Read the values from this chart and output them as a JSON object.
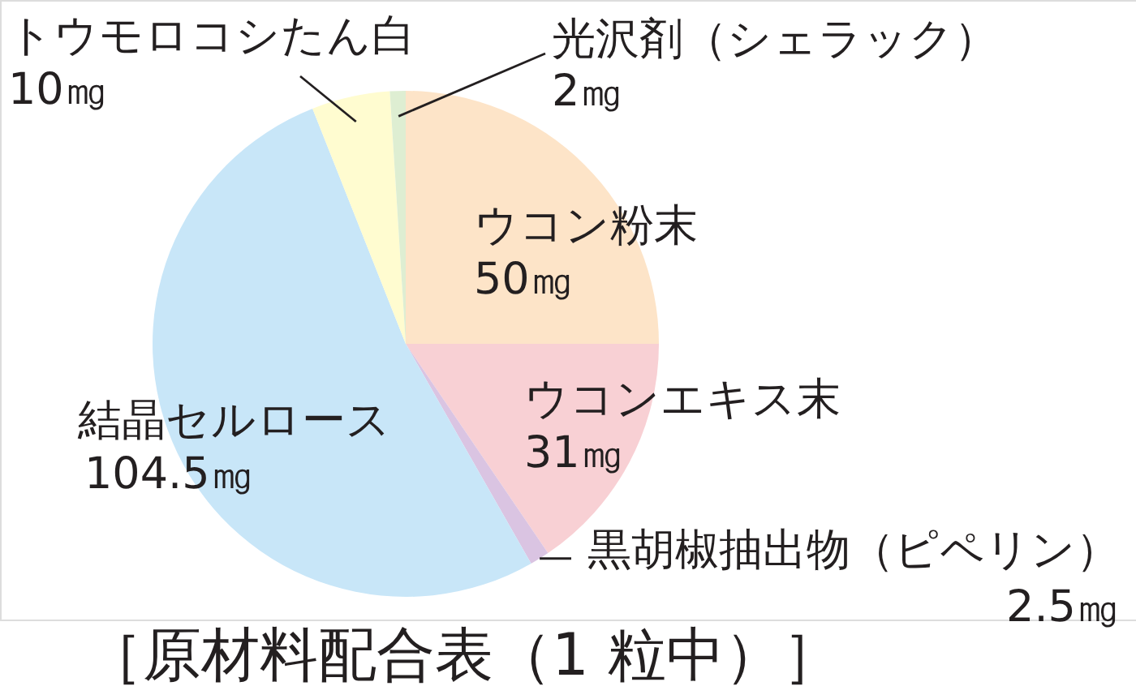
{
  "chart_data": {
    "type": "pie",
    "title": "［原材料配合表（1 粒中）］",
    "categories": [
      "ウコン粉末",
      "ウコンエキス末",
      "黒胡椒抽出物（ピペリン）",
      "結晶セルロース",
      "トウモロコシたん白",
      "光沢剤（シェラック）"
    ],
    "values": [
      50,
      31,
      2.5,
      104.5,
      10,
      2
    ],
    "value_labels": [
      "50㎎",
      "31㎎",
      "2.5㎎",
      "104.5㎎",
      "10㎎",
      "2㎎"
    ],
    "colors": [
      "#fde4c8",
      "#f8d0d4",
      "#dac4e2",
      "#c8e6f8",
      "#fffcd0",
      "#deeed2"
    ]
  }
}
